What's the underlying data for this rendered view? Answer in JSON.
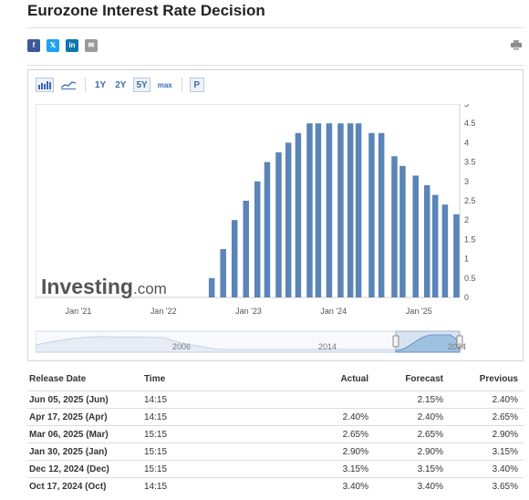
{
  "page": {
    "title": "Eurozone Interest Rate Decision"
  },
  "share": {
    "facebook": "f",
    "twitter": "𝕏",
    "linkedin": "in",
    "email": "✉",
    "icons": [
      "facebook-icon",
      "twitter-icon",
      "linkedin-icon",
      "email-icon",
      "print-icon"
    ]
  },
  "toolbar": {
    "ranges": [
      "1Y",
      "2Y",
      "5Y",
      "max"
    ],
    "active_range": "5Y",
    "p_label": "P"
  },
  "chart_data": {
    "type": "bar",
    "x": [
      "2022-07-27",
      "2022-09-14",
      "2022-11-02",
      "2022-12-21",
      "2023-02-08",
      "2023-03-22",
      "2023-05-10",
      "2023-06-21",
      "2023-08-02",
      "2023-09-20",
      "2023-10-27",
      "2023-12-13",
      "2024-01-31",
      "2024-03-13",
      "2024-04-17",
      "2024-06-12",
      "2024-07-24",
      "2024-09-18",
      "2024-10-23",
      "2024-12-18",
      "2025-02-05",
      "2025-03-12",
      "2025-04-23",
      "2025-06-11"
    ],
    "values": [
      0.5,
      1.25,
      2.0,
      2.5,
      3.0,
      3.5,
      3.75,
      4.0,
      4.25,
      4.5,
      4.5,
      4.5,
      4.5,
      4.5,
      4.5,
      4.25,
      4.25,
      3.65,
      3.4,
      3.15,
      2.9,
      2.65,
      2.4,
      2.15
    ],
    "ylim": [
      0,
      5
    ],
    "yticks": [
      "0",
      "0.5",
      "1",
      "1.5",
      "2",
      "2.5",
      "3",
      "3.5",
      "4",
      "4.5",
      "5"
    ],
    "xticks": [
      "Jan '21",
      "Jan '22",
      "Jan '23",
      "Jan '24",
      "Jan '25"
    ],
    "bar_color": "#5b84b8",
    "watermark": "Investing",
    "watermark_suffix": ".com",
    "navigator_labels": [
      "2006",
      "2014",
      "2024"
    ]
  },
  "table": {
    "headers": {
      "date": "Release Date",
      "time": "Time",
      "actual": "Actual",
      "forecast": "Forecast",
      "previous": "Previous"
    },
    "rows": [
      {
        "date": "Jun 05, 2025 (Jun)",
        "time": "14:15",
        "actual": "",
        "forecast": "2.15%",
        "previous": "2.40%"
      },
      {
        "date": "Apr 17, 2025 (Apr)",
        "time": "14:15",
        "actual": "2.40%",
        "forecast": "2.40%",
        "previous": "2.65%"
      },
      {
        "date": "Mar 06, 2025 (Mar)",
        "time": "15:15",
        "actual": "2.65%",
        "forecast": "2.65%",
        "previous": "2.90%"
      },
      {
        "date": "Jan 30, 2025 (Jan)",
        "time": "15:15",
        "actual": "2.90%",
        "forecast": "2.90%",
        "previous": "3.15%"
      },
      {
        "date": "Dec 12, 2024 (Dec)",
        "time": "15:15",
        "actual": "3.15%",
        "forecast": "3.15%",
        "previous": "3.40%"
      },
      {
        "date": "Oct 17, 2024 (Oct)",
        "time": "14:15",
        "actual": "3.40%",
        "forecast": "3.40%",
        "previous": "3.65%"
      }
    ]
  },
  "colors": {
    "accent": "#3a6ab0",
    "previous_red": "#c0392b"
  }
}
